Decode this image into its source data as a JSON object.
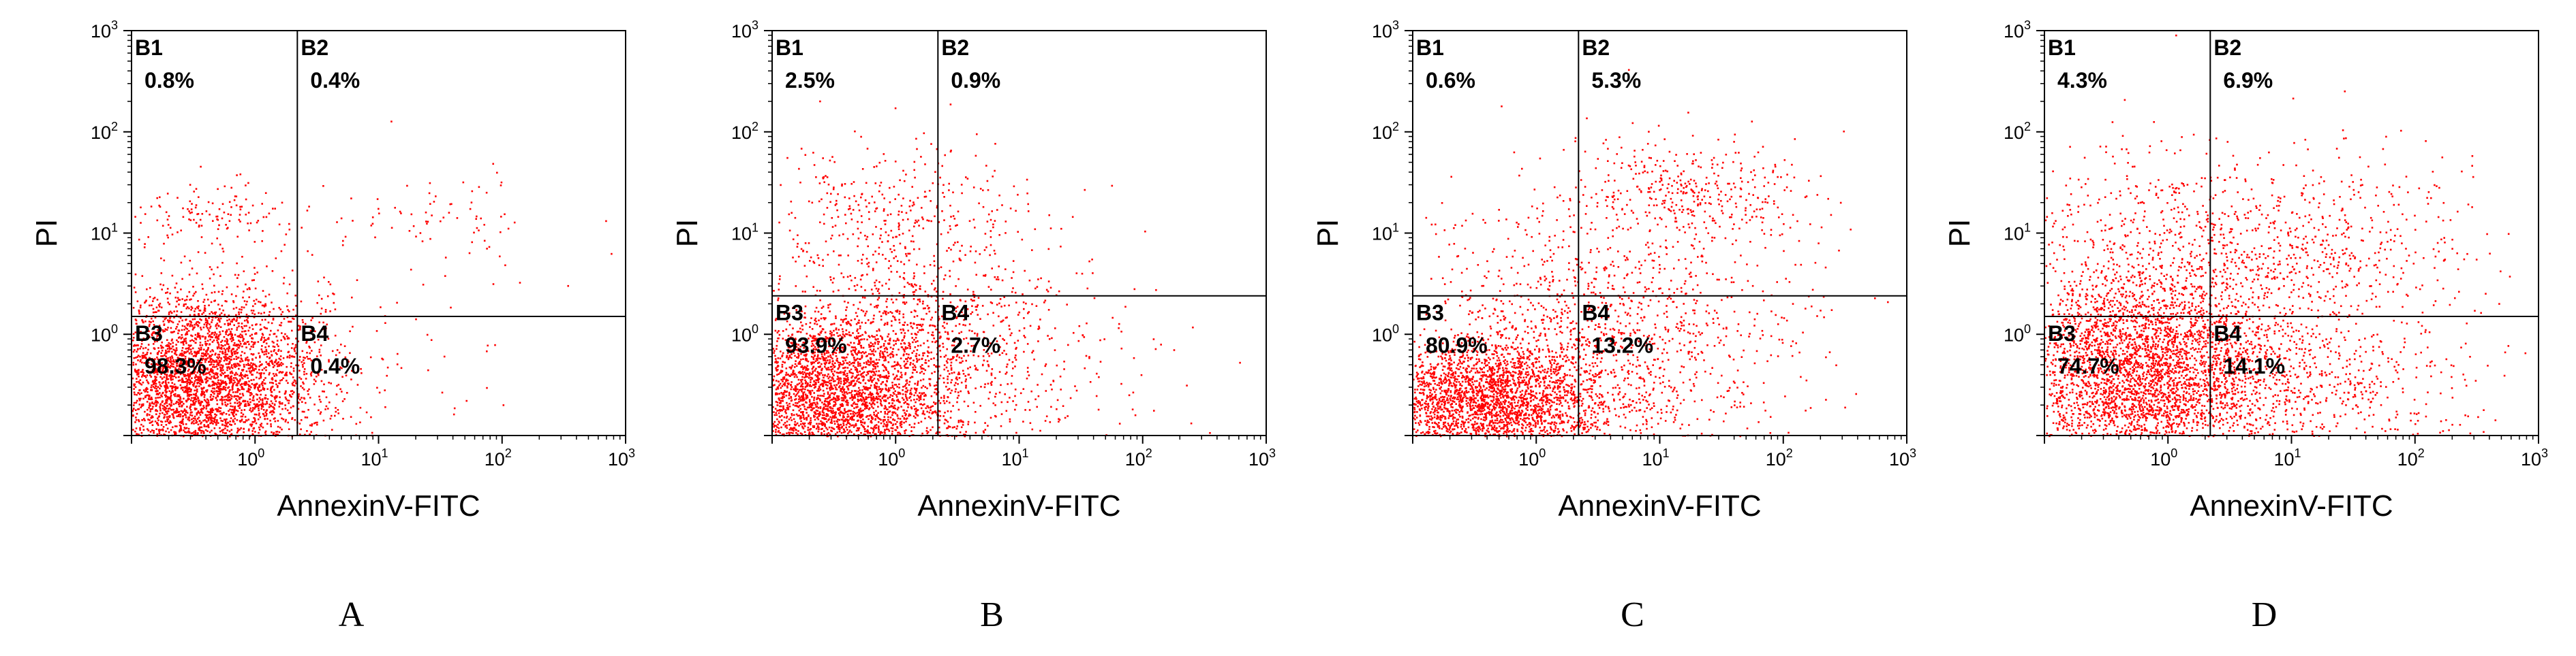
{
  "chart_data": [
    {
      "type": "scatter",
      "panel_label": "A",
      "xlabel": "AnnexinV-FITC",
      "ylabel": "PI",
      "x_scale": "log",
      "y_scale": "log",
      "xlim": [
        0.1,
        1000
      ],
      "ylim": [
        0.1,
        1000
      ],
      "x_ticks": [
        "10^0",
        "10^1",
        "10^2",
        "10^3"
      ],
      "y_ticks": [
        "10^0",
        "10^1",
        "10^2",
        "10^3"
      ],
      "gates": {
        "x": 2.2,
        "y": 1.5
      },
      "quadrants": [
        {
          "name": "B1",
          "value": "0.8%"
        },
        {
          "name": "B2",
          "value": "0.4%"
        },
        {
          "name": "B3",
          "value": "98.3%"
        },
        {
          "name": "B4",
          "value": "0.4%"
        }
      ],
      "point_color": "#ff0000",
      "clusters": [
        {
          "cx": 0.35,
          "cy": 0.33,
          "sx": 0.5,
          "sy": 0.45,
          "n": 4200
        },
        {
          "cx": 0.4,
          "cy": 16,
          "sx": 0.35,
          "sy": 0.15,
          "n": 130
        },
        {
          "cx": 40,
          "cy": 16,
          "sx": 0.4,
          "sy": 0.2,
          "n": 60
        },
        {
          "cx": 8,
          "cy": 0.6,
          "sx": 0.9,
          "sy": 0.9,
          "n": 130
        }
      ]
    },
    {
      "type": "scatter",
      "panel_label": "B",
      "xlabel": "AnnexinV-FITC",
      "ylabel": "PI",
      "x_scale": "log",
      "y_scale": "log",
      "xlim": [
        0.1,
        1000
      ],
      "ylim": [
        0.1,
        1000
      ],
      "x_ticks": [
        "10^0",
        "10^1",
        "10^2",
        "10^3"
      ],
      "y_ticks": [
        "10^0",
        "10^1",
        "10^2",
        "10^3"
      ],
      "gates": {
        "x": 2.2,
        "y": 2.4
      },
      "quadrants": [
        {
          "name": "B1",
          "value": "2.5%"
        },
        {
          "name": "B2",
          "value": "0.9%"
        },
        {
          "name": "B3",
          "value": "93.9%"
        },
        {
          "name": "B4",
          "value": "2.7%"
        }
      ],
      "point_color": "#ff0000",
      "clusters": [
        {
          "cx": 0.3,
          "cy": 0.25,
          "sx": 0.5,
          "sy": 0.4,
          "n": 3300
        },
        {
          "cx": 1.2,
          "cy": 1.0,
          "sx": 0.6,
          "sy": 0.6,
          "n": 900
        },
        {
          "cx": 1.0,
          "cy": 20,
          "sx": 0.55,
          "sy": 0.3,
          "n": 260
        },
        {
          "cx": 6,
          "cy": 0.4,
          "sx": 0.7,
          "sy": 0.6,
          "n": 300
        }
      ]
    },
    {
      "type": "scatter",
      "panel_label": "C",
      "xlabel": "AnnexinV-FITC",
      "ylabel": "PI",
      "x_scale": "log",
      "y_scale": "log",
      "xlim": [
        0.1,
        1000
      ],
      "ylim": [
        0.1,
        1000
      ],
      "x_ticks": [
        "10^0",
        "10^1",
        "10^2",
        "10^3"
      ],
      "y_ticks": [
        "10^0",
        "10^1",
        "10^2",
        "10^3"
      ],
      "gates": {
        "x": 2.2,
        "y": 2.4
      },
      "quadrants": [
        {
          "name": "B1",
          "value": "0.6%"
        },
        {
          "name": "B2",
          "value": "5.3%"
        },
        {
          "name": "B3",
          "value": "80.9%"
        },
        {
          "name": "B4",
          "value": "13.2%"
        }
      ],
      "point_color": "#ff0000",
      "clusters": [
        {
          "cx": 0.4,
          "cy": 0.22,
          "sx": 0.5,
          "sy": 0.3,
          "n": 2800
        },
        {
          "cx": 2.5,
          "cy": 0.6,
          "sx": 0.8,
          "sy": 0.7,
          "n": 1300
        },
        {
          "cx": 20,
          "cy": 25,
          "sx": 0.45,
          "sy": 0.25,
          "n": 350
        },
        {
          "cx": 10,
          "cy": 3,
          "sx": 0.8,
          "sy": 0.7,
          "n": 250
        }
      ]
    },
    {
      "type": "scatter",
      "panel_label": "D",
      "xlabel": "AnnexinV-FITC",
      "ylabel": "PI",
      "x_scale": "log",
      "y_scale": "log",
      "xlim": [
        0.1,
        1000
      ],
      "ylim": [
        0.1,
        1000
      ],
      "x_ticks": [
        "10^0",
        "10^1",
        "10^2",
        "10^3"
      ],
      "y_ticks": [
        "10^0",
        "10^1",
        "10^2",
        "10^3"
      ],
      "gates": {
        "x": 2.2,
        "y": 1.5
      },
      "quadrants": [
        {
          "name": "B1",
          "value": "4.3%"
        },
        {
          "name": "B2",
          "value": "6.9%"
        },
        {
          "name": "B3",
          "value": "74.7%"
        },
        {
          "name": "B4",
          "value": "14.1%"
        }
      ],
      "point_color": "#ff0000",
      "clusters": [
        {
          "cx": 0.5,
          "cy": 0.35,
          "sx": 0.55,
          "sy": 0.5,
          "n": 2800
        },
        {
          "cx": 1.0,
          "cy": 0.8,
          "sx": 0.5,
          "sy": 0.5,
          "n": 900
        },
        {
          "cx": 10,
          "cy": 0.25,
          "sx": 0.7,
          "sy": 0.35,
          "n": 600
        },
        {
          "cx": 12,
          "cy": 6,
          "sx": 0.65,
          "sy": 0.5,
          "n": 700
        },
        {
          "cx": 0.6,
          "cy": 8,
          "sx": 0.5,
          "sy": 0.55,
          "n": 350
        }
      ]
    }
  ]
}
